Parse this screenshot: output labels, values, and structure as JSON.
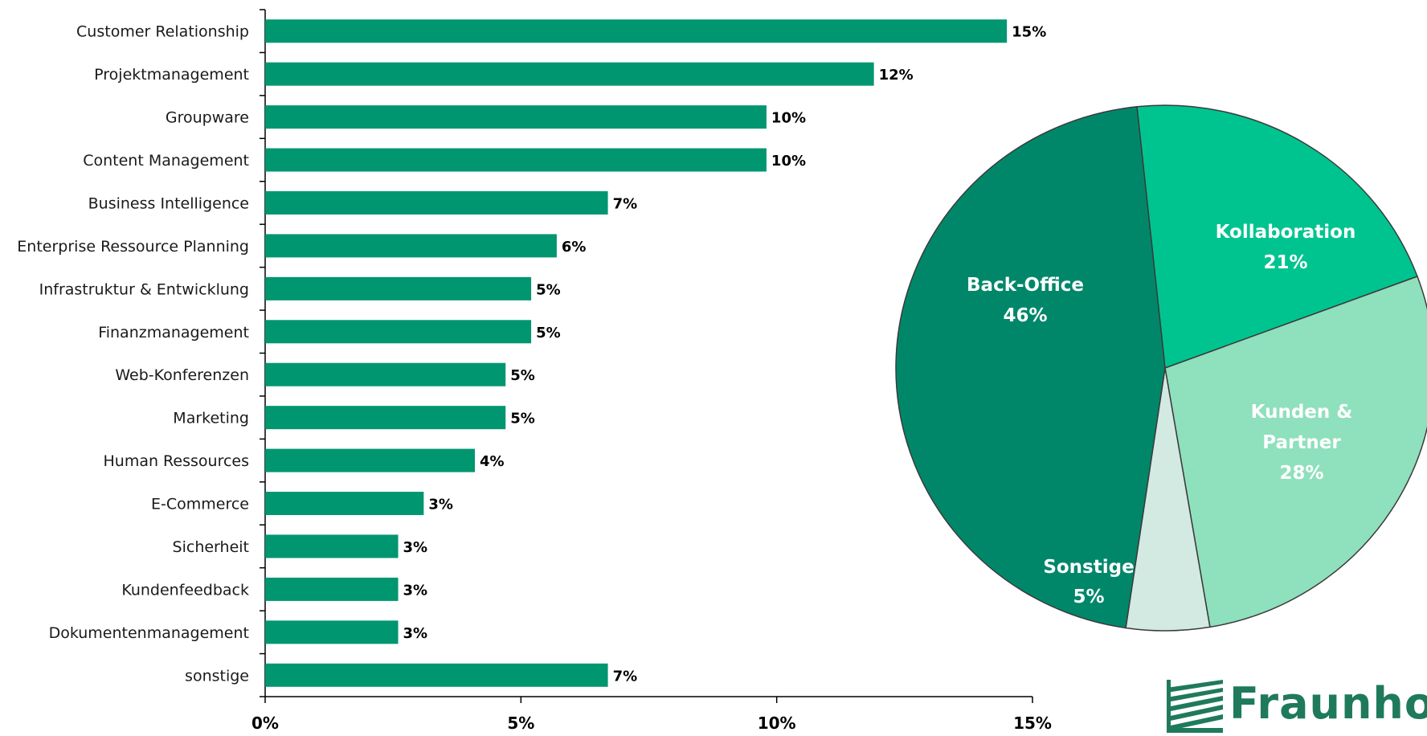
{
  "colors": {
    "bar": "#009670",
    "pie_back_office": "#00876A",
    "pie_kollaboration": "#00C48F",
    "pie_kunden": "#8FE0BD",
    "pie_sonstige": "#D2EAE1",
    "pie_edge": "#3b3b3b",
    "logo": "#1f7a5c"
  },
  "logo": {
    "text": "Fraunhof",
    "icon": "fraunhofer-logo-stripes-icon"
  },
  "chart_data": [
    {
      "type": "bar",
      "orientation": "horizontal",
      "categories": [
        "Customer Relationship",
        "Projektmanagement",
        "Groupware",
        "Content Management",
        "Business Intelligence",
        "Enterprise Ressource Planning",
        "Infrastruktur & Entwicklung",
        "Finanzmanagement",
        "Web-Konferenzen",
        "Marketing",
        "Human Ressources",
        "E-Commerce",
        "Sicherheit",
        "Kundenfeedback",
        "Dokumentenmanagement",
        "sonstige"
      ],
      "values": [
        14.5,
        11.9,
        9.8,
        9.8,
        6.7,
        5.7,
        5.2,
        5.2,
        4.7,
        4.7,
        4.1,
        3.1,
        2.6,
        2.6,
        2.6,
        6.7
      ],
      "value_labels": [
        "15%",
        "12%",
        "10%",
        "10%",
        "7%",
        "6%",
        "5%",
        "5%",
        "5%",
        "5%",
        "4%",
        "3%",
        "3%",
        "3%",
        "3%",
        "7%"
      ],
      "xlim": [
        0,
        15
      ],
      "xticks": [
        0,
        5,
        10,
        15
      ],
      "xtick_labels": [
        "0%",
        "5%",
        "10%",
        "15%"
      ],
      "grid": false
    },
    {
      "type": "pie",
      "slices": [
        {
          "label": "Back-Office",
          "value": 46,
          "value_label": "46%"
        },
        {
          "label": "Kollaboration",
          "value": 21,
          "value_label": "21%"
        },
        {
          "label": "Kunden & Partner",
          "value": 28,
          "value_label": "28%"
        },
        {
          "label": "Sonstige",
          "value": 5,
          "value_label": "5%"
        }
      ]
    }
  ]
}
